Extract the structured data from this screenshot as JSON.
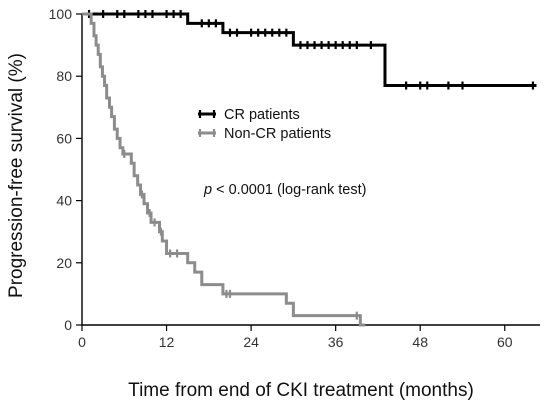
{
  "chart_data": {
    "type": "line",
    "subtype": "kaplan-meier step",
    "xlabel": "Time from end of CKI treatment (months)",
    "ylabel": "Progression-free survival (%)",
    "xlim": [
      0,
      65
    ],
    "ylim": [
      0,
      100
    ],
    "xticks": [
      0,
      12,
      24,
      36,
      48,
      60
    ],
    "yticks": [
      0,
      20,
      40,
      60,
      80,
      100
    ],
    "grid": false,
    "legend_position": "center",
    "annotation": {
      "italic": "p",
      "rest": " < 0.0001 (log-rank test)"
    },
    "series": [
      {
        "name": "CR  patients",
        "color": "#000000",
        "steps": [
          [
            0,
            100
          ],
          [
            15,
            100
          ],
          [
            15,
            97
          ],
          [
            20,
            97
          ],
          [
            20,
            94
          ],
          [
            30,
            94
          ],
          [
            30,
            90
          ],
          [
            43,
            90
          ],
          [
            43,
            77
          ],
          [
            64.5,
            77
          ]
        ],
        "censored": [
          [
            1,
            100
          ],
          [
            3,
            100
          ],
          [
            5,
            100
          ],
          [
            6,
            100
          ],
          [
            8,
            100
          ],
          [
            9,
            100
          ],
          [
            10,
            100
          ],
          [
            12,
            100
          ],
          [
            13,
            100
          ],
          [
            14,
            100
          ],
          [
            17,
            97
          ],
          [
            18,
            97
          ],
          [
            19,
            97
          ],
          [
            21,
            94
          ],
          [
            22,
            94
          ],
          [
            24,
            94
          ],
          [
            25,
            94
          ],
          [
            26,
            94
          ],
          [
            27,
            94
          ],
          [
            28,
            94
          ],
          [
            29,
            94
          ],
          [
            31,
            90
          ],
          [
            32,
            90
          ],
          [
            33,
            90
          ],
          [
            34,
            90
          ],
          [
            35,
            90
          ],
          [
            36,
            90
          ],
          [
            37,
            90
          ],
          [
            38,
            90
          ],
          [
            39,
            90
          ],
          [
            41,
            90
          ],
          [
            46,
            77
          ],
          [
            48,
            77
          ],
          [
            49,
            77
          ],
          [
            52,
            77
          ],
          [
            54,
            77
          ],
          [
            64,
            77
          ]
        ]
      },
      {
        "name": "Non-CR patients",
        "color": "#8c8c8c",
        "steps": [
          [
            0,
            100
          ],
          [
            1.3,
            100
          ],
          [
            1.3,
            97
          ],
          [
            1.7,
            97
          ],
          [
            1.7,
            93
          ],
          [
            2.0,
            93
          ],
          [
            2.0,
            90
          ],
          [
            2.3,
            90
          ],
          [
            2.3,
            87
          ],
          [
            2.6,
            87
          ],
          [
            2.6,
            83
          ],
          [
            2.9,
            83
          ],
          [
            2.9,
            80
          ],
          [
            3.2,
            80
          ],
          [
            3.2,
            77
          ],
          [
            3.5,
            77
          ],
          [
            3.5,
            73
          ],
          [
            3.9,
            73
          ],
          [
            3.9,
            70
          ],
          [
            4.2,
            70
          ],
          [
            4.2,
            67
          ],
          [
            4.6,
            67
          ],
          [
            4.6,
            63
          ],
          [
            5.0,
            63
          ],
          [
            5.0,
            60
          ],
          [
            5.4,
            60
          ],
          [
            5.4,
            57
          ],
          [
            5.8,
            57
          ],
          [
            5.8,
            55
          ],
          [
            7.0,
            55
          ],
          [
            7.0,
            52
          ],
          [
            7.4,
            52
          ],
          [
            7.4,
            48
          ],
          [
            7.9,
            48
          ],
          [
            7.9,
            45
          ],
          [
            8.3,
            45
          ],
          [
            8.3,
            42
          ],
          [
            8.8,
            42
          ],
          [
            8.8,
            39
          ],
          [
            9.3,
            39
          ],
          [
            9.3,
            36
          ],
          [
            9.8,
            36
          ],
          [
            9.8,
            33
          ],
          [
            11.0,
            33
          ],
          [
            11.0,
            30
          ],
          [
            11.4,
            30
          ],
          [
            11.4,
            27
          ],
          [
            12.0,
            27
          ],
          [
            12.0,
            23
          ],
          [
            15.0,
            23
          ],
          [
            15.0,
            20
          ],
          [
            16.0,
            20
          ],
          [
            16.0,
            17
          ],
          [
            17.0,
            17
          ],
          [
            17.0,
            13
          ],
          [
            20.0,
            13
          ],
          [
            20.0,
            10
          ],
          [
            29.0,
            10
          ],
          [
            29.0,
            7
          ],
          [
            30.0,
            7
          ],
          [
            30.0,
            3
          ],
          [
            39.5,
            3
          ],
          [
            39.5,
            0
          ],
          [
            40.2,
            0
          ]
        ],
        "censored": [
          [
            6.0,
            55
          ],
          [
            8.5,
            42
          ],
          [
            9.6,
            36
          ],
          [
            10.3,
            33
          ],
          [
            11.2,
            30
          ],
          [
            12.5,
            23
          ],
          [
            13.5,
            23
          ],
          [
            20.5,
            10
          ],
          [
            21.0,
            10
          ],
          [
            39.0,
            3
          ]
        ]
      }
    ]
  }
}
